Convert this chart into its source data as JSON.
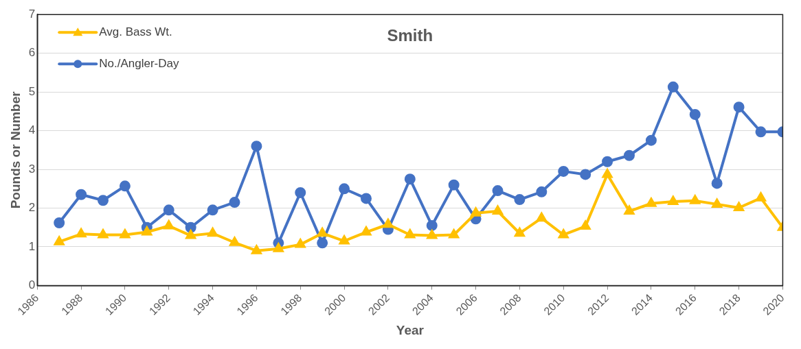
{
  "chart_data": {
    "type": "line",
    "title": "Smith",
    "xlabel": "Year",
    "ylabel": "Pounds or Number",
    "x": [
      1987,
      1988,
      1989,
      1990,
      1991,
      1992,
      1993,
      1994,
      1995,
      1996,
      1997,
      1998,
      1999,
      2000,
      2001,
      2002,
      2003,
      2004,
      2005,
      2006,
      2007,
      2008,
      2009,
      2010,
      2011,
      2012,
      2013,
      2014,
      2015,
      2016,
      2017,
      2018,
      2019,
      2020
    ],
    "series": [
      {
        "name": "Avg. Bass Wt.",
        "color": "#ffc000",
        "marker": "triangle",
        "values": [
          1.13,
          1.33,
          1.31,
          1.31,
          1.38,
          1.54,
          1.29,
          1.35,
          1.11,
          0.9,
          0.95,
          1.06,
          1.35,
          1.15,
          1.38,
          1.58,
          1.31,
          1.29,
          1.31,
          1.87,
          1.92,
          1.35,
          1.74,
          1.31,
          1.53,
          2.87,
          1.92,
          2.12,
          2.17,
          2.19,
          2.1,
          2.01,
          2.26,
          1.5
        ]
      },
      {
        "name": "No./Angler-Day",
        "color": "#4472c4",
        "marker": "circle",
        "values": [
          1.62,
          2.35,
          2.2,
          2.57,
          1.5,
          1.95,
          1.5,
          1.95,
          2.15,
          3.6,
          1.1,
          2.4,
          1.1,
          2.5,
          2.25,
          1.45,
          2.75,
          1.55,
          2.6,
          1.72,
          2.45,
          2.22,
          2.42,
          2.95,
          2.87,
          3.2,
          3.36,
          3.75,
          5.13,
          4.42,
          2.64,
          4.61,
          3.97,
          3.97
        ]
      }
    ],
    "xlim": [
      1986,
      2020
    ],
    "xticks": [
      1986,
      1988,
      1990,
      1992,
      1994,
      1996,
      1998,
      2000,
      2002,
      2004,
      2006,
      2008,
      2010,
      2012,
      2014,
      2016,
      2018,
      2020
    ],
    "ylim": [
      0,
      7
    ],
    "yticks": [
      0,
      1,
      2,
      3,
      4,
      5,
      6,
      7
    ],
    "grid": "y",
    "legend": "top left",
    "line_style": "solid"
  }
}
